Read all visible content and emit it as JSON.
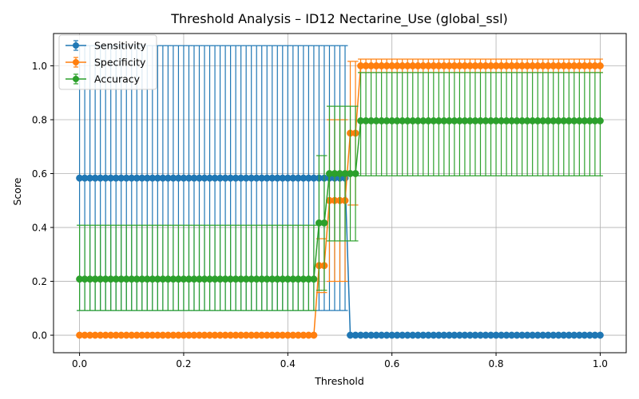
{
  "chart_data": {
    "type": "line",
    "title": "Threshold Analysis – ID12 Nectarine_Use (global_ssl)",
    "xlabel": "Threshold",
    "ylabel": "Score",
    "xlim": [
      -0.05,
      1.05
    ],
    "ylim": [
      -0.065,
      1.12
    ],
    "xticks": [
      0.0,
      0.2,
      0.4,
      0.6,
      0.8,
      1.0
    ],
    "xtick_labels": [
      "0.0",
      "0.2",
      "0.4",
      "0.6",
      "0.8",
      "1.0"
    ],
    "yticks": [
      0.0,
      0.2,
      0.4,
      0.6,
      0.8,
      1.0
    ],
    "ytick_labels": [
      "0.0",
      "0.2",
      "0.4",
      "0.6",
      "0.8",
      "1.0"
    ],
    "grid": true,
    "legend_position": "top-left",
    "error_bars": true,
    "threshold_range": {
      "start": 0.0,
      "end": 1.0,
      "step": 0.01
    },
    "series": [
      {
        "name": "Sensitivity",
        "color": "#1f77b4",
        "segments": [
          {
            "from": 0.0,
            "to": 0.51,
            "value": 0.5833,
            "lower": 0.0917,
            "upper": 1.075
          },
          {
            "from": 0.52,
            "to": 1.0,
            "value": 0.0,
            "lower": 0.0,
            "upper": 0.0
          }
        ]
      },
      {
        "name": "Specificity",
        "color": "#ff7f0e",
        "segments": [
          {
            "from": 0.0,
            "to": 0.45,
            "value": 0.0,
            "lower": 0.0,
            "upper": 0.0
          },
          {
            "from": 0.46,
            "to": 0.47,
            "value": 0.2583,
            "lower": 0.1583,
            "upper": 0.3583
          },
          {
            "from": 0.48,
            "to": 0.51,
            "value": 0.5,
            "lower": 0.2,
            "upper": 0.8
          },
          {
            "from": 0.52,
            "to": 0.53,
            "value": 0.75,
            "lower": 0.4833,
            "upper": 1.0167
          },
          {
            "from": 0.54,
            "to": 1.0,
            "value": 1.0,
            "lower": 0.975,
            "upper": 1.025
          }
        ]
      },
      {
        "name": "Accuracy",
        "color": "#2ca02c",
        "segments": [
          {
            "from": 0.0,
            "to": 0.45,
            "value": 0.2083,
            "lower": 0.0917,
            "upper": 0.4083
          },
          {
            "from": 0.46,
            "to": 0.47,
            "value": 0.4167,
            "lower": 0.1667,
            "upper": 0.6667
          },
          {
            "from": 0.48,
            "to": 0.53,
            "value": 0.6,
            "lower": 0.35,
            "upper": 0.85
          },
          {
            "from": 0.54,
            "to": 1.0,
            "value": 0.7958,
            "lower": 0.5917,
            "upper": 0.975
          }
        ]
      }
    ]
  }
}
